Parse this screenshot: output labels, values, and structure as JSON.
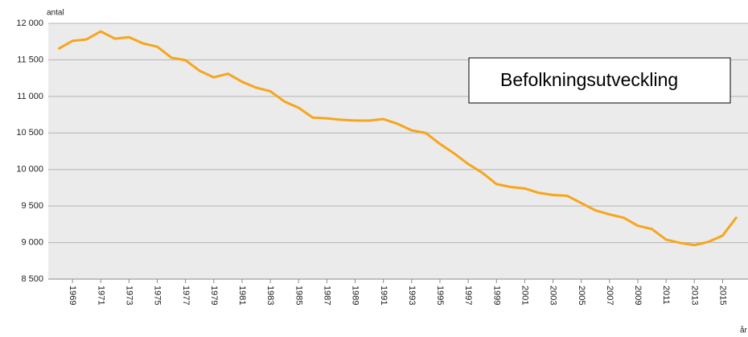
{
  "chart_data": {
    "type": "line",
    "annotation": "Befolkningsutveckling",
    "ylabel": "antal",
    "xlabel": "år",
    "x": [
      1968,
      1969,
      1970,
      1971,
      1972,
      1973,
      1974,
      1975,
      1976,
      1977,
      1978,
      1979,
      1980,
      1981,
      1982,
      1983,
      1984,
      1985,
      1986,
      1987,
      1988,
      1989,
      1990,
      1991,
      1992,
      1993,
      1994,
      1995,
      1996,
      1997,
      1998,
      1999,
      2000,
      2001,
      2002,
      2003,
      2004,
      2005,
      2006,
      2007,
      2008,
      2009,
      2010,
      2011,
      2012,
      2013,
      2014,
      2015,
      2016
    ],
    "series": [
      {
        "name": "antal",
        "color": "#f7a51c",
        "values": [
          11650,
          11760,
          11780,
          11890,
          11790,
          11810,
          11725,
          11680,
          11530,
          11495,
          11350,
          11260,
          11310,
          11200,
          11120,
          11070,
          10930,
          10845,
          10710,
          10700,
          10680,
          10670,
          10670,
          10690,
          10625,
          10535,
          10500,
          10350,
          10220,
          10075,
          9955,
          9800,
          9760,
          9740,
          9680,
          9650,
          9640,
          9540,
          9440,
          9385,
          9340,
          9230,
          9185,
          9040,
          8995,
          8965,
          9010,
          9095,
          9350
        ]
      }
    ],
    "xlim": [
      1968,
      2016
    ],
    "xticks": [
      1969,
      1971,
      1973,
      1975,
      1977,
      1979,
      1981,
      1983,
      1985,
      1987,
      1989,
      1991,
      1993,
      1995,
      1997,
      1999,
      2001,
      2003,
      2005,
      2007,
      2009,
      2011,
      2013,
      2015
    ],
    "ylim": [
      8500,
      12000
    ],
    "yticks": [
      {
        "value": 8500,
        "label": "8 500"
      },
      {
        "value": 9000,
        "label": "9 000"
      },
      {
        "value": 9500,
        "label": "9 500"
      },
      {
        "value": 10000,
        "label": "10 000"
      },
      {
        "value": 10500,
        "label": "10 500"
      },
      {
        "value": 11000,
        "label": "11 000"
      },
      {
        "value": 11500,
        "label": "11 500"
      },
      {
        "value": 12000,
        "label": "12 000"
      }
    ],
    "grid": true
  }
}
